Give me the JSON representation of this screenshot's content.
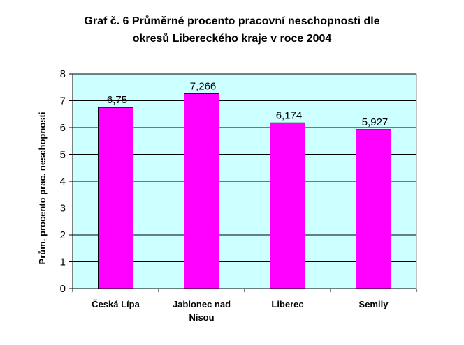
{
  "chart_data": {
    "type": "bar",
    "title_line1": "Graf č. 6 Průměrné procento pracovní neschopnosti dle",
    "title_line2": "okresů Libereckého kraje v roce 2004",
    "ylabel": "Prům. procento prac. neschopnosti",
    "xlabel": "",
    "categories": [
      [
        "Česká Lípa"
      ],
      [
        "Jablonec nad",
        "Nisou"
      ],
      [
        "Liberec"
      ],
      [
        "Semily"
      ]
    ],
    "values": [
      6.75,
      7.266,
      6.174,
      5.927
    ],
    "data_labels": [
      "6,75",
      "7,266",
      "6,174",
      "5,927"
    ],
    "ylim": [
      0,
      8
    ],
    "yticks": [
      "0",
      "1",
      "2",
      "3",
      "4",
      "5",
      "6",
      "7",
      "8"
    ],
    "grid": true,
    "legend": "none",
    "colors": {
      "bar": "#FF00FF",
      "bar_border": "#000000",
      "plot_background": "#CCFFFF",
      "grid": "#000000"
    }
  }
}
